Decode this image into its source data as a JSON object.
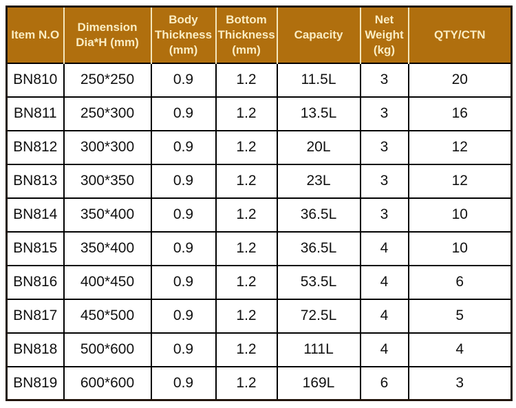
{
  "colors": {
    "header_bg": "#b06f0e",
    "header_text": "#faedc3",
    "header_separator": "#f5e8be",
    "outer_border": "#20130a",
    "grid_border": "#000000",
    "body_bg": "#ffffff",
    "body_text": "#111111"
  },
  "table": {
    "header": {
      "columns": [
        "Item N.O",
        "Dimension\nDia*H (mm)",
        "Body\nThickness\n(mm)",
        "Bottom\nThickness\n(mm)",
        "Capacity",
        "Net\nWeight\n(kg)",
        "QTY/CTN"
      ]
    },
    "rows": [
      [
        "BN810",
        "250*250",
        "0.9",
        "1.2",
        "11.5L",
        "3",
        "20"
      ],
      [
        "BN811",
        "250*300",
        "0.9",
        "1.2",
        "13.5L",
        "3",
        "16"
      ],
      [
        "BN812",
        "300*300",
        "0.9",
        "1.2",
        "20L",
        "3",
        "12"
      ],
      [
        "BN813",
        "300*350",
        "0.9",
        "1.2",
        "23L",
        "3",
        "12"
      ],
      [
        "BN814",
        "350*400",
        "0.9",
        "1.2",
        "36.5L",
        "3",
        "10"
      ],
      [
        "BN815",
        "350*400",
        "0.9",
        "1.2",
        "36.5L",
        "4",
        "10"
      ],
      [
        "BN816",
        "400*450",
        "0.9",
        "1.2",
        "53.5L",
        "4",
        "6"
      ],
      [
        "BN817",
        "450*500",
        "0.9",
        "1.2",
        "72.5L",
        "4",
        "5"
      ],
      [
        "BN818",
        "500*600",
        "0.9",
        "1.2",
        "111L",
        "4",
        "4"
      ],
      [
        "BN819",
        "600*600",
        "0.9",
        "1.2",
        "169L",
        "6",
        "3"
      ]
    ]
  }
}
